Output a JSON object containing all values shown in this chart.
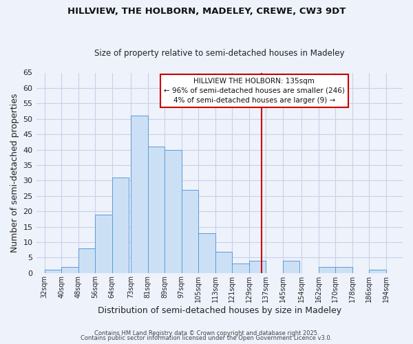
{
  "title1": "HILLVIEW, THE HOLBORN, MADELEY, CREWE, CW3 9DT",
  "title2": "Size of property relative to semi-detached houses in Madeley",
  "xlabel": "Distribution of semi-detached houses by size in Madeley",
  "ylabel": "Number of semi-detached properties",
  "bin_left_edges": [
    32,
    40,
    48,
    56,
    64,
    73,
    81,
    89,
    97,
    105,
    113,
    121,
    129,
    137,
    145,
    154,
    162,
    170,
    178,
    186
  ],
  "bin_labels": [
    "32sqm",
    "40sqm",
    "48sqm",
    "56sqm",
    "64sqm",
    "73sqm",
    "81sqm",
    "89sqm",
    "97sqm",
    "105sqm",
    "113sqm",
    "121sqm",
    "129sqm",
    "137sqm",
    "145sqm",
    "154sqm",
    "162sqm",
    "170sqm",
    "178sqm",
    "186sqm",
    "194sqm"
  ],
  "all_tick_positions": [
    32,
    40,
    48,
    56,
    64,
    73,
    81,
    89,
    97,
    105,
    113,
    121,
    129,
    137,
    145,
    154,
    162,
    170,
    178,
    186,
    194
  ],
  "counts": [
    1,
    2,
    8,
    19,
    31,
    51,
    41,
    40,
    27,
    13,
    7,
    3,
    4,
    0,
    4,
    0,
    2,
    2,
    0,
    1
  ],
  "bin_width": 8,
  "bar_color": "#cce0f5",
  "bar_edgecolor": "#5b9bd5",
  "vline_x": 135,
  "vline_color": "#cc0000",
  "annotation_title": "HILLVIEW THE HOLBORN: 135sqm",
  "annotation_line1": "← 96% of semi-detached houses are smaller (246)",
  "annotation_line2": "4% of semi-detached houses are larger (9) →",
  "annotation_box_edgecolor": "#cc0000",
  "xlim_left": 28,
  "xlim_right": 202,
  "ylim": [
    0,
    65
  ],
  "yticks": [
    0,
    5,
    10,
    15,
    20,
    25,
    30,
    35,
    40,
    45,
    50,
    55,
    60,
    65
  ],
  "bg_color": "#eef2fb",
  "grid_color": "#c8d0e8",
  "footer1": "Contains HM Land Registry data © Crown copyright and database right 2025.",
  "footer2": "Contains public sector information licensed under the Open Government Licence v3.0."
}
